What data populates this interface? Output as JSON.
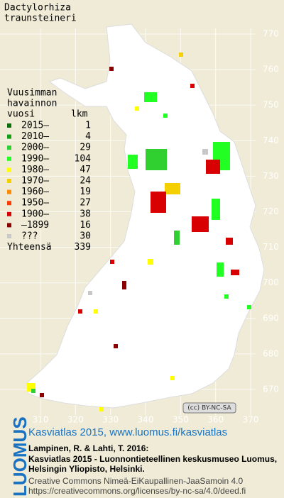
{
  "title": [
    "Dactylorhiza",
    "traunsteineri"
  ],
  "legend": {
    "heading": [
      "Vuusimman",
      "havainnon",
      "vuosi"
    ],
    "count_heading": "lkm",
    "entries": [
      {
        "label": "2015–",
        "count": 1,
        "color": "#0b6e0b"
      },
      {
        "label": "2010–",
        "count": 4,
        "color": "#12a012"
      },
      {
        "label": "2000–",
        "count": 29,
        "color": "#2fd02f"
      },
      {
        "label": "1990–",
        "count": 104,
        "color": "#22ff22"
      },
      {
        "label": "1980–",
        "count": 47,
        "color": "#ffff00"
      },
      {
        "label": "1970–",
        "count": 24,
        "color": "#f5d000"
      },
      {
        "label": "1960–",
        "count": 19,
        "color": "#ff8a00"
      },
      {
        "label": "1950–",
        "count": 27,
        "color": "#ff3a00"
      },
      {
        "label": "1900–",
        "count": 38,
        "color": "#d80000"
      },
      {
        "label": "–1899",
        "count": 16,
        "color": "#8a0000"
      },
      {
        "label": "???",
        "count": 30,
        "color": "#c8c8c8"
      }
    ],
    "total": {
      "label": "Yhteensä",
      "count": 339
    }
  },
  "map": {
    "y_labels": [
      770,
      760,
      750,
      740,
      730,
      720,
      710,
      700,
      690,
      680,
      670
    ],
    "x_labels": [
      310,
      320,
      330,
      340,
      350,
      360,
      370
    ]
  },
  "badge": "(cc) BY-NC-SA",
  "logo": "LUOMUS",
  "footer": {
    "link": "Kasviatlas 2015, www.luomus.fi/kasviatlas",
    "citation": [
      "Lampinen, R. & Lahti, T. 2016:",
      "Kasviatlas 2015 - Luonnontieteellinen keskusmuseo Luomus,",
      "Helsingin Yliopisto, Helsinki."
    ],
    "license": [
      "Creative Commons Nimeä-EiKaupallinen-JaaSamoin 4.0",
      "https://creativecommons.org/licenses/by-nc-sa/4.0/deed.fi"
    ]
  }
}
